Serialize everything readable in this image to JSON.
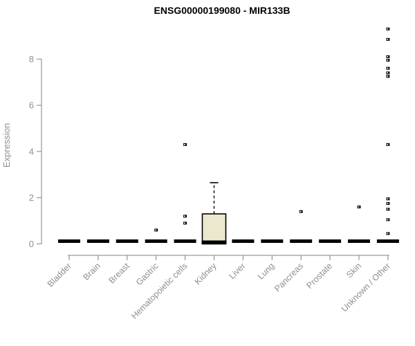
{
  "chart_data": {
    "type": "boxplot",
    "title": "ENSG00000199080 - MIR133B",
    "ylabel": "Expression",
    "xlabel": "",
    "yticks": [
      0,
      2,
      4,
      6,
      8
    ],
    "ylim": [
      0,
      9.6
    ],
    "grid": false,
    "legend": false,
    "categories": [
      "Bladder",
      "Brain",
      "Breast",
      "Gastric",
      "Hematopoietic cells",
      "Kidney",
      "Liver",
      "Lung",
      "Pancreas",
      "Prostate",
      "Skin",
      "Unknown / Other"
    ],
    "boxes": [
      {
        "category": "Bladder",
        "q1": 0,
        "median": 0,
        "q3": 0,
        "whisker_low": 0,
        "whisker_high": 0,
        "outliers": []
      },
      {
        "category": "Brain",
        "q1": 0,
        "median": 0,
        "q3": 0,
        "whisker_low": 0,
        "whisker_high": 0,
        "outliers": []
      },
      {
        "category": "Breast",
        "q1": 0,
        "median": 0,
        "q3": 0,
        "whisker_low": 0,
        "whisker_high": 0,
        "outliers": []
      },
      {
        "category": "Gastric",
        "q1": 0,
        "median": 0,
        "q3": 0,
        "whisker_low": 0,
        "whisker_high": 0,
        "outliers": [
          0.6
        ]
      },
      {
        "category": "Hematopoietic cells",
        "q1": 0,
        "median": 0,
        "q3": 0,
        "whisker_low": 0,
        "whisker_high": 0,
        "outliers": [
          4.3,
          1.2,
          0.9
        ]
      },
      {
        "category": "Kidney",
        "q1": 0,
        "median": 0,
        "q3": 1.3,
        "whisker_low": 0,
        "whisker_high": 2.65,
        "outliers": []
      },
      {
        "category": "Liver",
        "q1": 0,
        "median": 0,
        "q3": 0,
        "whisker_low": 0,
        "whisker_high": 0,
        "outliers": []
      },
      {
        "category": "Lung",
        "q1": 0,
        "median": 0,
        "q3": 0,
        "whisker_low": 0,
        "whisker_high": 0,
        "outliers": []
      },
      {
        "category": "Pancreas",
        "q1": 0,
        "median": 0,
        "q3": 0,
        "whisker_low": 0,
        "whisker_high": 0,
        "outliers": [
          1.4
        ]
      },
      {
        "category": "Prostate",
        "q1": 0,
        "median": 0,
        "q3": 0,
        "whisker_low": 0,
        "whisker_high": 0,
        "outliers": []
      },
      {
        "category": "Skin",
        "q1": 0,
        "median": 0,
        "q3": 0,
        "whisker_low": 0,
        "whisker_high": 0,
        "outliers": [
          1.6
        ]
      },
      {
        "category": "Unknown / Other",
        "q1": 0,
        "median": 0,
        "q3": 0,
        "whisker_low": 0,
        "whisker_high": 0,
        "outliers": [
          9.3,
          8.85,
          8.1,
          7.95,
          7.6,
          7.4,
          7.25,
          4.3,
          1.95,
          1.75,
          1.5,
          1.05,
          0.45
        ]
      }
    ],
    "colors": {
      "box_fill": "#ece8cd",
      "box_stroke": "#000000",
      "median": "#000000",
      "outlier": "#000000",
      "axis": "#808080",
      "tick_text": "#8f8f8f",
      "title_text": "#000000",
      "background": "#ffffff"
    }
  }
}
